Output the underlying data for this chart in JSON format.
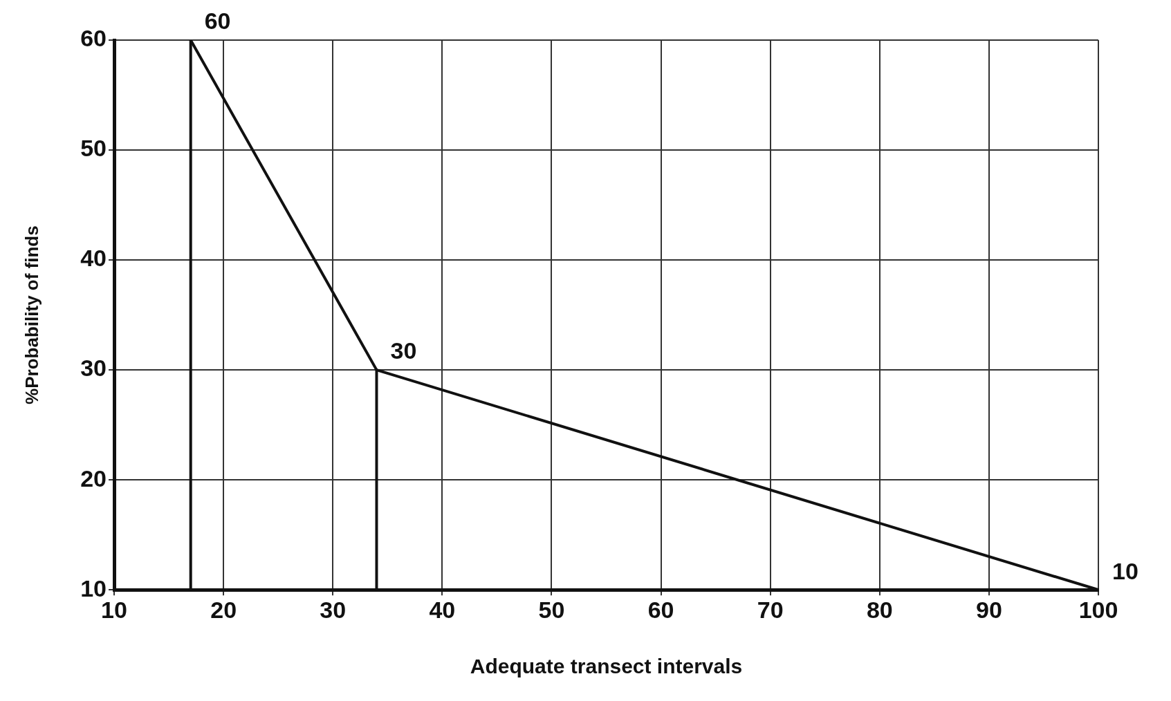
{
  "chart_data": {
    "type": "line",
    "xlabel": "Adequate transect intervals",
    "ylabel": "%Probability of finds",
    "xlim": [
      10,
      100
    ],
    "xticks": [
      10,
      20,
      30,
      40,
      50,
      60,
      70,
      80,
      90,
      100
    ],
    "ylim": [
      10,
      60
    ],
    "yticks": [
      10,
      20,
      30,
      40,
      50,
      60
    ],
    "grid": true,
    "legend": false,
    "marker": "none",
    "line_style": "solid",
    "series": [
      {
        "x": [
          17,
          34,
          100
        ],
        "values": [
          60,
          30,
          10
        ],
        "color": "#111111",
        "value_labels": [
          "60",
          "30",
          "10"
        ]
      },
      {
        "x": [
          17,
          17
        ],
        "values": [
          10,
          60
        ],
        "color": "#111111"
      },
      {
        "x": [
          34,
          34
        ],
        "values": [
          10,
          30
        ],
        "color": "#111111"
      }
    ]
  }
}
